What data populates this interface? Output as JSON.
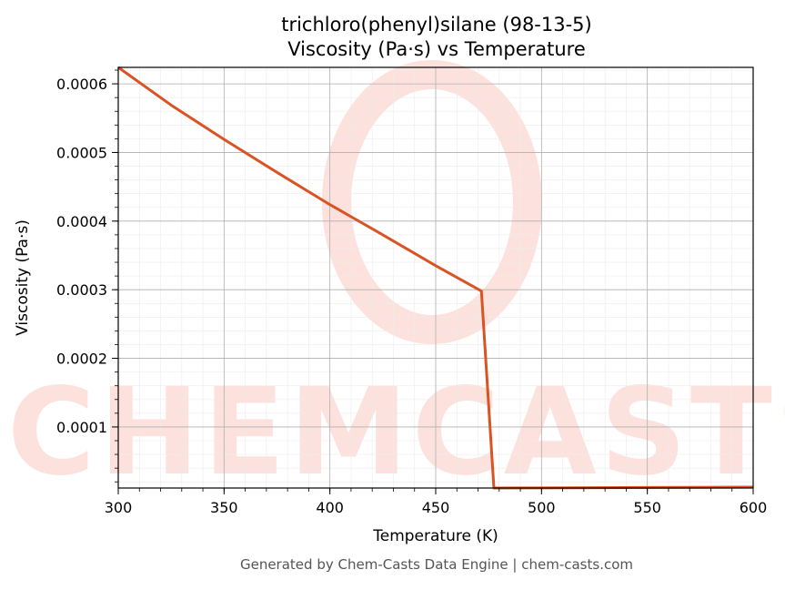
{
  "chart_data": {
    "type": "line",
    "title": "trichloro(phenyl)silane (98-13-5)",
    "subtitle": "Viscosity (Pa·s) vs Temperature",
    "xlabel": "Temperature (K)",
    "ylabel": "Viscosity (Pa·s)",
    "xlim": [
      300,
      600
    ],
    "ylim": [
      1.1e-05,
      0.000624
    ],
    "x_ticks": [
      300,
      350,
      400,
      450,
      500,
      550,
      600
    ],
    "y_ticks": [
      0.0001,
      0.0002,
      0.0003,
      0.0004,
      0.0005,
      0.0006
    ],
    "y_tick_labels": [
      "0.0001",
      "0.0002",
      "0.0003",
      "0.0004",
      "0.0005",
      "0.0006"
    ],
    "grid": true,
    "minor_grid": true,
    "series": [
      {
        "color": "#d95323",
        "x": [
          300,
          325,
          350,
          375,
          400,
          425,
          450,
          471.6,
          477.5,
          500,
          550,
          600
        ],
        "y": [
          0.000624,
          0.000569,
          0.000519,
          0.000471,
          0.000424,
          0.00038,
          0.000335,
          0.000298,
          1.1e-05,
          1.12e-05,
          1.18e-05,
          1.24e-05
        ]
      }
    ]
  },
  "footer": "Generated by Chem-Casts Data Engine | chem-casts.com",
  "watermark": "CHEMCASTS"
}
